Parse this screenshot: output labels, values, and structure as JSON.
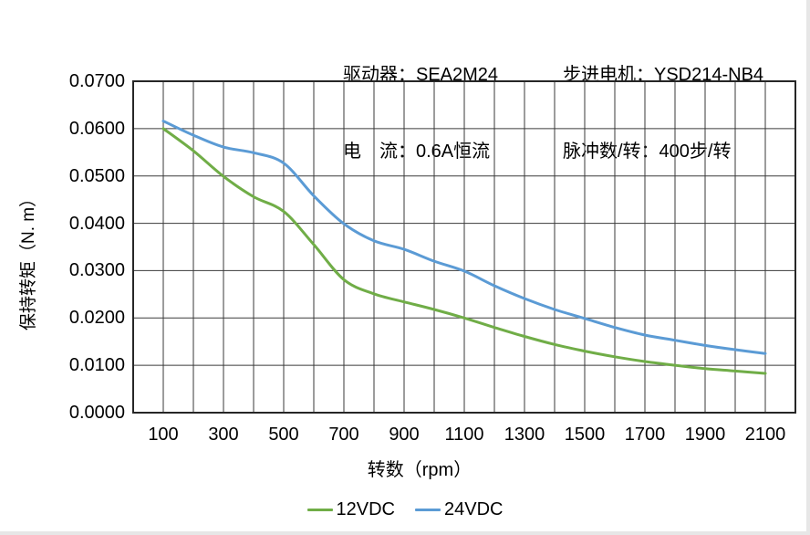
{
  "header": {
    "left_lines": [
      "驱动器：SEA2M24",
      "电　流：0.6A恒流"
    ],
    "right_lines": [
      "步进电机：YSD214-NB4",
      "脉冲数/转：400步/转"
    ]
  },
  "chart_data": {
    "type": "line",
    "x": [
      100,
      200,
      300,
      400,
      500,
      600,
      700,
      800,
      900,
      1000,
      1100,
      1200,
      1300,
      1400,
      1500,
      1600,
      1700,
      1800,
      1900,
      2000,
      2100
    ],
    "series": [
      {
        "name": "12VDC",
        "color": "#70AD47",
        "values": [
          0.06,
          0.0553,
          0.0499,
          0.0456,
          0.0425,
          0.0355,
          0.0281,
          0.0251,
          0.0234,
          0.0218,
          0.02,
          0.018,
          0.0161,
          0.0144,
          0.013,
          0.0118,
          0.0108,
          0.01,
          0.0093,
          0.0088,
          0.0083
        ]
      },
      {
        "name": "24VDC",
        "color": "#5B9BD5",
        "values": [
          0.0616,
          0.0586,
          0.0561,
          0.0549,
          0.0527,
          0.0458,
          0.0399,
          0.0363,
          0.0345,
          0.032,
          0.0299,
          0.0268,
          0.0241,
          0.0218,
          0.0199,
          0.018,
          0.0164,
          0.0153,
          0.0142,
          0.0133,
          0.0125
        ]
      }
    ],
    "title": "",
    "xlabel": "转数（rpm）",
    "ylabel": "保持转矩（N. m）",
    "xlim": [
      0,
      2200
    ],
    "ylim": [
      0,
      0.07
    ],
    "x_ticks": [
      100,
      300,
      500,
      700,
      900,
      1100,
      1300,
      1500,
      1700,
      1900,
      2100
    ],
    "x_grid_step": 100,
    "y_ticks": [
      0,
      0.01,
      0.02,
      0.03,
      0.04,
      0.05,
      0.06,
      0.07
    ],
    "y_tick_labels": [
      "0.0000",
      "0.0100",
      "0.0200",
      "0.0300",
      "0.0400",
      "0.0500",
      "0.0600",
      "0.0700"
    ],
    "grid": true,
    "legend_position": "bottom"
  },
  "style": {
    "grid_color": "#3a3a3a",
    "border_color": "#262626",
    "text_color": "#000000"
  }
}
